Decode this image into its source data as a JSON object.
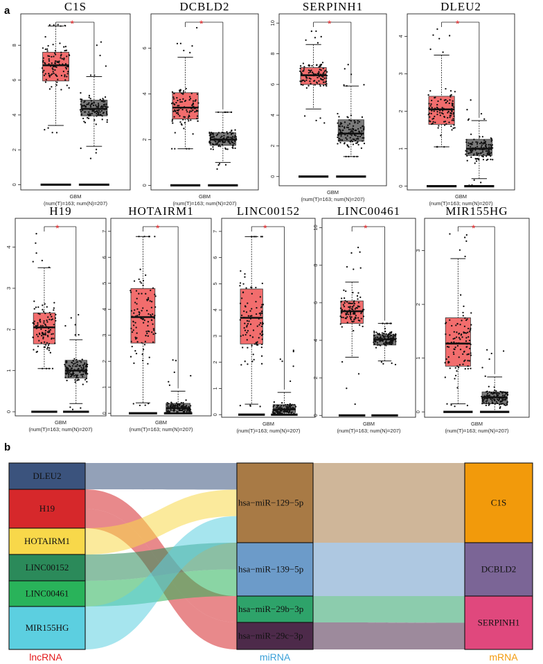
{
  "panel_a": {
    "label": "a"
  },
  "panel_b": {
    "label": "b"
  },
  "colors": {
    "tumor": "#f26d6d",
    "normal": "#7a7a7a",
    "star": "#e41a1c"
  },
  "chart_data": [
    {
      "type": "box",
      "title": "C1S",
      "xlabel": "GBM",
      "caption": "(num(T)=163; num(N)=207)",
      "yticks": [
        "0",
        "2",
        "4",
        "6",
        "8"
      ],
      "ylim": [
        -0.3,
        9.8
      ],
      "significance": "*",
      "tumor": {
        "q1": 5.95,
        "median": 6.85,
        "q3": 7.6,
        "whisker_low": 3.4,
        "whisker_high": 9.1,
        "points_min": 2.8,
        "points_max": 9.2
      },
      "normal": {
        "q1": 3.95,
        "median": 4.35,
        "q3": 4.85,
        "whisker_low": 2.2,
        "whisker_high": 6.2,
        "points_min": 1.5,
        "points_max": 8.2
      }
    },
    {
      "type": "box",
      "title": "DCBLD2",
      "xlabel": "GBM",
      "caption": "(num(T)=163; num(N)=207)",
      "yticks": [
        "0",
        "2",
        "4",
        "6"
      ],
      "ylim": [
        -0.2,
        7.5
      ],
      "significance": "*",
      "tumor": {
        "q1": 2.9,
        "median": 3.4,
        "q3": 4.05,
        "whisker_low": 1.6,
        "whisker_high": 5.6,
        "points_min": 1.6,
        "points_max": 7.0
      },
      "normal": {
        "q1": 1.75,
        "median": 2.0,
        "q3": 2.3,
        "whisker_low": 1.0,
        "whisker_high": 3.2,
        "points_min": 0.6,
        "points_max": 3.2
      }
    },
    {
      "type": "box",
      "title": "SERPINH1",
      "xlabel": "GBM",
      "caption": "(num(T)=163; num(N)=207)",
      "yticks": [
        "0",
        "2",
        "4",
        "6",
        "8",
        "10"
      ],
      "ylim": [
        -0.6,
        10.6
      ],
      "significance": "*",
      "tumor": {
        "q1": 6.0,
        "median": 6.6,
        "q3": 7.1,
        "whisker_low": 4.4,
        "whisker_high": 8.6,
        "points_min": 3.4,
        "points_max": 9.6
      },
      "normal": {
        "q1": 2.3,
        "median": 2.8,
        "q3": 3.7,
        "whisker_low": 1.3,
        "whisker_high": 5.9,
        "points_min": 1.3,
        "points_max": 7.4
      }
    },
    {
      "type": "box",
      "title": "DLEU2",
      "xlabel": "GBM",
      "caption": "(num(T)=163; num(N)=207)",
      "yticks": [
        "0",
        "1",
        "2",
        "3",
        "4"
      ],
      "ylim": [
        -0.1,
        4.6
      ],
      "significance": "*",
      "tumor": {
        "q1": 1.65,
        "median": 2.05,
        "q3": 2.4,
        "whisker_low": 1.05,
        "whisker_high": 3.5,
        "points_min": 1.05,
        "points_max": 4.35
      },
      "normal": {
        "q1": 0.82,
        "median": 1.0,
        "q3": 1.25,
        "whisker_low": 0.2,
        "whisker_high": 1.75,
        "points_min": 0.0,
        "points_max": 2.4
      }
    },
    {
      "type": "box",
      "title": "H19",
      "xlabel": "GBM",
      "caption": "(num(T)=163; num(N)=207)",
      "yticks": [
        "0",
        "1",
        "2",
        "3",
        "4"
      ],
      "ylim": [
        -0.1,
        4.7
      ],
      "significance": "*",
      "tumor": {
        "q1": 1.65,
        "median": 2.05,
        "q3": 2.4,
        "whisker_low": 1.05,
        "whisker_high": 3.5,
        "points_min": 1.05,
        "points_max": 4.35
      },
      "normal": {
        "q1": 0.82,
        "median": 1.0,
        "q3": 1.25,
        "whisker_low": 0.2,
        "whisker_high": 1.75,
        "points_min": 0.0,
        "points_max": 2.4
      }
    },
    {
      "type": "box",
      "title": "HOTAIRM1",
      "xlabel": "GBM",
      "caption": "(num(T)=163; num(N)=207)",
      "yticks": [
        "0",
        "1",
        "2",
        "3",
        "4",
        "5",
        "6",
        "7"
      ],
      "ylim": [
        -0.1,
        7.5
      ],
      "significance": "*",
      "tumor": {
        "q1": 2.7,
        "median": 3.7,
        "q3": 4.8,
        "whisker_low": 0.4,
        "whisker_high": 6.8,
        "points_min": 0.3,
        "points_max": 6.8
      },
      "normal": {
        "q1": 0.08,
        "median": 0.2,
        "q3": 0.38,
        "whisker_low": 0.0,
        "whisker_high": 0.85,
        "points_min": 0.0,
        "points_max": 2.5
      }
    },
    {
      "type": "box",
      "title": "LINC00152",
      "xlabel": "GBM",
      "caption": "(num(T)=163; num(N)=207)",
      "yticks": [
        "0",
        "1",
        "2",
        "3",
        "4",
        "5",
        "6",
        "7"
      ],
      "ylim": [
        -0.1,
        7.5
      ],
      "significance": "*",
      "tumor": {
        "q1": 2.7,
        "median": 3.7,
        "q3": 4.8,
        "whisker_low": 0.4,
        "whisker_high": 6.8,
        "points_min": 0.3,
        "points_max": 6.8
      },
      "normal": {
        "q1": 0.08,
        "median": 0.2,
        "q3": 0.38,
        "whisker_low": 0.0,
        "whisker_high": 0.85,
        "points_min": 0.0,
        "points_max": 2.5
      }
    },
    {
      "type": "box",
      "title": "LINC00461",
      "xlabel": "GBM",
      "caption": "(num(T)=163; num(N)=207)",
      "yticks": [
        "0",
        "2",
        "4",
        "6",
        "8",
        "10"
      ],
      "ylim": [
        -0.1,
        10.5
      ],
      "significance": "*",
      "tumor": {
        "q1": 4.9,
        "median": 5.55,
        "q3": 6.1,
        "whisker_low": 3.1,
        "whisker_high": 7.1,
        "points_min": 0.5,
        "points_max": 9.7
      },
      "normal": {
        "q1": 3.75,
        "median": 4.05,
        "q3": 4.3,
        "whisker_low": 2.9,
        "whisker_high": 4.9,
        "points_min": 2.7,
        "points_max": 4.9
      }
    },
    {
      "type": "box",
      "title": "MIR155HG",
      "xlabel": "GBM",
      "caption": "(num(T)=163; num(N)=207)",
      "yticks": [
        "0",
        "1",
        "2",
        "3"
      ],
      "ylim": [
        -0.1,
        3.6
      ],
      "significance": "*",
      "tumor": {
        "q1": 0.85,
        "median": 1.27,
        "q3": 1.75,
        "whisker_low": 0.15,
        "whisker_high": 2.85,
        "points_min": 0.1,
        "points_max": 3.4
      },
      "normal": {
        "q1": 0.15,
        "median": 0.27,
        "q3": 0.37,
        "whisker_low": 0.0,
        "whisker_high": 0.65,
        "points_min": 0.0,
        "points_max": 1.3
      }
    },
    {
      "type": "sankey",
      "stages": [
        "lncRNA",
        "miRNA",
        "mRNA"
      ],
      "stage_colors": [
        "#e41a1c",
        "#3aa0d8",
        "#f29b0e"
      ],
      "nodes": [
        {
          "name": "DLEU2",
          "stage": 0,
          "color": "#3b537d"
        },
        {
          "name": "H19",
          "stage": 0,
          "color": "#d6282b"
        },
        {
          "name": "HOTAIRM1",
          "stage": 0,
          "color": "#f8d84a"
        },
        {
          "name": "LINC00152",
          "stage": 0,
          "color": "#2b8a5a"
        },
        {
          "name": "LINC00461",
          "stage": 0,
          "color": "#29b35a"
        },
        {
          "name": "MIR155HG",
          "stage": 0,
          "color": "#5ccfe0"
        },
        {
          "name": "hsa−miR−129−5p",
          "stage": 1,
          "color": "#a87a45"
        },
        {
          "name": "hsa−miR−139−5p",
          "stage": 1,
          "color": "#6c9bc9"
        },
        {
          "name": "hsa−miR−29b−3p",
          "stage": 1,
          "color": "#2ea36a"
        },
        {
          "name": "hsa−miR−29c−3p",
          "stage": 1,
          "color": "#4d2a4a"
        },
        {
          "name": "C1S",
          "stage": 2,
          "color": "#f29a0b"
        },
        {
          "name": "DCBLD2",
          "stage": 2,
          "color": "#7b6596"
        },
        {
          "name": "SERPINH1",
          "stage": 2,
          "color": "#e0487d"
        }
      ],
      "links": [
        {
          "source": "DLEU2",
          "target": "hsa−miR−129−5p",
          "value": 1
        },
        {
          "source": "H19",
          "target": "hsa−miR−29b−3p",
          "value": 1
        },
        {
          "source": "H19",
          "target": "hsa−miR−29c−3p",
          "value": 1
        },
        {
          "source": "HOTAIRM1",
          "target": "hsa−miR−129−5p",
          "value": 1
        },
        {
          "source": "LINC00152",
          "target": "hsa−miR−139−5p",
          "value": 1
        },
        {
          "source": "LINC00461",
          "target": "hsa−miR−139−5p",
          "value": 1
        },
        {
          "source": "MIR155HG",
          "target": "hsa−miR−129−5p",
          "value": 1
        },
        {
          "source": "hsa−miR−129−5p",
          "target": "C1S",
          "value": 3
        },
        {
          "source": "hsa−miR−139−5p",
          "target": "DCBLD2",
          "value": 2
        },
        {
          "source": "hsa−miR−29b−3p",
          "target": "SERPINH1",
          "value": 1
        },
        {
          "source": "hsa−miR−29c−3p",
          "target": "SERPINH1",
          "value": 1
        }
      ]
    }
  ]
}
